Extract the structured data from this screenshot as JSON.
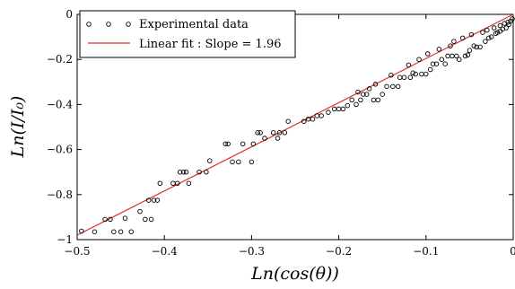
{
  "chart_data": {
    "type": "scatter",
    "xlabel": "Ln(cos(θ))",
    "ylabel": "Ln(I/I₀)",
    "xlim": [
      -0.5,
      0
    ],
    "ylim": [
      -1,
      0
    ],
    "grid": false,
    "legend_position": "top-left",
    "x_ticks": [
      {
        "value": -0.5,
        "label": "−0.5"
      },
      {
        "value": -0.4,
        "label": "−0.4"
      },
      {
        "value": -0.3,
        "label": "−0.3"
      },
      {
        "value": -0.2,
        "label": "−0.2"
      },
      {
        "value": -0.1,
        "label": "−0.1"
      },
      {
        "value": 0,
        "label": "0"
      }
    ],
    "y_ticks": [
      {
        "value": 0,
        "label": "0"
      },
      {
        "value": -0.2,
        "label": "−0.2"
      },
      {
        "value": -0.4,
        "label": "−0.4"
      },
      {
        "value": -0.6,
        "label": "−0.6"
      },
      {
        "value": -0.8,
        "label": "−0.8"
      },
      {
        "value": -1,
        "label": "−1"
      }
    ],
    "series": [
      {
        "name": "Experimental data",
        "type": "scatter",
        "color": "#000000",
        "points": [
          [
            -0.495,
            -0.962
          ],
          [
            -0.48,
            -0.965
          ],
          [
            -0.468,
            -0.91
          ],
          [
            -0.462,
            -0.91
          ],
          [
            -0.458,
            -0.965
          ],
          [
            -0.45,
            -0.965
          ],
          [
            -0.445,
            -0.905
          ],
          [
            -0.438,
            -0.965
          ],
          [
            -0.428,
            -0.875
          ],
          [
            -0.422,
            -0.91
          ],
          [
            -0.418,
            -0.825
          ],
          [
            -0.415,
            -0.91
          ],
          [
            -0.412,
            -0.825
          ],
          [
            -0.408,
            -0.825
          ],
          [
            -0.405,
            -0.75
          ],
          [
            -0.39,
            -0.75
          ],
          [
            -0.385,
            -0.75
          ],
          [
            -0.382,
            -0.7
          ],
          [
            -0.378,
            -0.7
          ],
          [
            -0.375,
            -0.7
          ],
          [
            -0.372,
            -0.75
          ],
          [
            -0.36,
            -0.7
          ],
          [
            -0.352,
            -0.7
          ],
          [
            -0.348,
            -0.65
          ],
          [
            -0.33,
            -0.575
          ],
          [
            -0.327,
            -0.575
          ],
          [
            -0.322,
            -0.655
          ],
          [
            -0.315,
            -0.655
          ],
          [
            -0.31,
            -0.575
          ],
          [
            -0.3,
            -0.655
          ],
          [
            -0.298,
            -0.575
          ],
          [
            -0.293,
            -0.525
          ],
          [
            -0.29,
            -0.525
          ],
          [
            -0.285,
            -0.55
          ],
          [
            -0.275,
            -0.525
          ],
          [
            -0.27,
            -0.55
          ],
          [
            -0.268,
            -0.525
          ],
          [
            -0.262,
            -0.525
          ],
          [
            -0.258,
            -0.475
          ],
          [
            -0.24,
            -0.475
          ],
          [
            -0.235,
            -0.465
          ],
          [
            -0.23,
            -0.465
          ],
          [
            -0.225,
            -0.45
          ],
          [
            -0.22,
            -0.45
          ],
          [
            -0.212,
            -0.435
          ],
          [
            -0.205,
            -0.42
          ],
          [
            -0.2,
            -0.42
          ],
          [
            -0.195,
            -0.42
          ],
          [
            -0.19,
            -0.405
          ],
          [
            -0.185,
            -0.38
          ],
          [
            -0.18,
            -0.4
          ],
          [
            -0.175,
            -0.38
          ],
          [
            -0.172,
            -0.355
          ],
          [
            -0.168,
            -0.355
          ],
          [
            -0.16,
            -0.38
          ],
          [
            -0.155,
            -0.38
          ],
          [
            -0.15,
            -0.355
          ],
          [
            -0.145,
            -0.32
          ],
          [
            -0.138,
            -0.32
          ],
          [
            -0.132,
            -0.32
          ],
          [
            -0.13,
            -0.28
          ],
          [
            -0.125,
            -0.28
          ],
          [
            -0.118,
            -0.28
          ],
          [
            -0.115,
            -0.26
          ],
          [
            -0.112,
            -0.265
          ],
          [
            -0.105,
            -0.265
          ],
          [
            -0.1,
            -0.265
          ],
          [
            -0.095,
            -0.245
          ],
          [
            -0.092,
            -0.22
          ],
          [
            -0.088,
            -0.22
          ],
          [
            -0.082,
            -0.2
          ],
          [
            -0.078,
            -0.22
          ],
          [
            -0.075,
            -0.185
          ],
          [
            -0.07,
            -0.185
          ],
          [
            -0.065,
            -0.185
          ],
          [
            -0.062,
            -0.2
          ],
          [
            -0.055,
            -0.185
          ],
          [
            -0.052,
            -0.18
          ],
          [
            -0.05,
            -0.16
          ],
          [
            -0.045,
            -0.14
          ],
          [
            -0.042,
            -0.145
          ],
          [
            -0.038,
            -0.145
          ],
          [
            -0.032,
            -0.12
          ],
          [
            -0.028,
            -0.105
          ],
          [
            -0.025,
            -0.1
          ],
          [
            -0.02,
            -0.085
          ],
          [
            -0.018,
            -0.08
          ],
          [
            -0.015,
            -0.075
          ],
          [
            -0.012,
            -0.065
          ],
          [
            -0.008,
            -0.06
          ],
          [
            -0.005,
            -0.045
          ],
          [
            -0.003,
            -0.03
          ],
          [
            -0.001,
            -0.02
          ],
          [
            -0.015,
            -0.05
          ],
          [
            -0.01,
            -0.04
          ],
          [
            -0.006,
            -0.035
          ],
          [
            -0.022,
            -0.06
          ],
          [
            -0.03,
            -0.07
          ],
          [
            -0.035,
            -0.08
          ],
          [
            -0.048,
            -0.09
          ],
          [
            -0.058,
            -0.105
          ],
          [
            -0.068,
            -0.12
          ],
          [
            -0.072,
            -0.14
          ],
          [
            -0.085,
            -0.155
          ],
          [
            -0.098,
            -0.175
          ],
          [
            -0.108,
            -0.2
          ],
          [
            -0.12,
            -0.225
          ],
          [
            -0.14,
            -0.27
          ],
          [
            -0.158,
            -0.31
          ],
          [
            -0.165,
            -0.33
          ],
          [
            -0.178,
            -0.345
          ]
        ]
      },
      {
        "name": "Linear fit :  Slope = 1.96",
        "type": "line",
        "color": "#e03030",
        "slope": 1.96,
        "x": [
          -0.5,
          0
        ],
        "y": [
          -0.98,
          0
        ]
      }
    ]
  }
}
